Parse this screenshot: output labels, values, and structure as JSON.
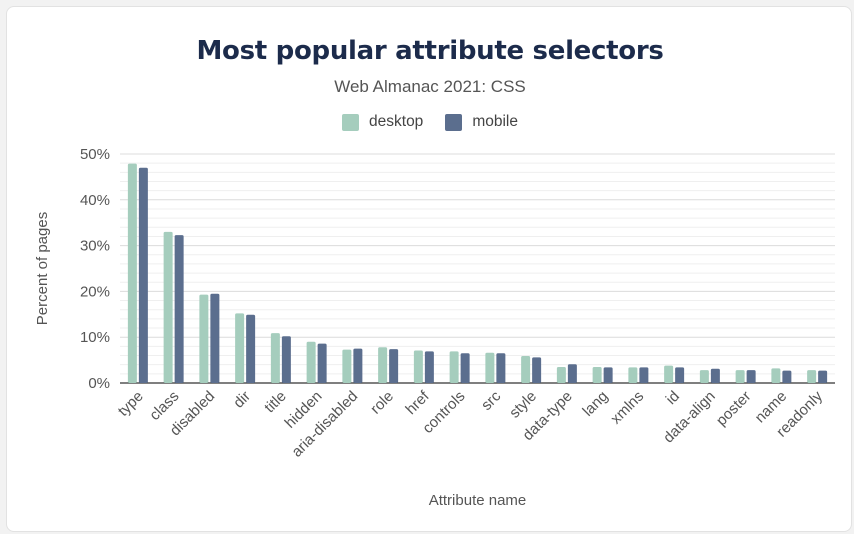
{
  "chart_data": {
    "type": "bar",
    "title": "Most popular attribute selectors",
    "subtitle": "Web Almanac 2021: CSS",
    "xlabel": "Attribute name",
    "ylabel": "Percent of pages",
    "ylim": [
      0,
      50
    ],
    "yticks": [
      "0%",
      "10%",
      "20%",
      "30%",
      "40%",
      "50%"
    ],
    "grid": true,
    "legend_position": "top",
    "categories": [
      "type",
      "class",
      "disabled",
      "dir",
      "title",
      "hidden",
      "aria-disabled",
      "role",
      "href",
      "controls",
      "src",
      "style",
      "data-type",
      "lang",
      "xmlns",
      "id",
      "data-align",
      "poster",
      "name",
      "readonly"
    ],
    "series": [
      {
        "name": "desktop",
        "color": "#a5cdbd",
        "values": [
          47.9,
          33.0,
          19.3,
          15.2,
          10.9,
          9.0,
          7.3,
          7.8,
          7.1,
          6.9,
          6.6,
          5.9,
          3.5,
          3.5,
          3.4,
          3.8,
          2.8,
          2.8,
          3.2,
          2.8
        ]
      },
      {
        "name": "mobile",
        "color": "#5b6e8e",
        "values": [
          47.0,
          32.3,
          19.5,
          14.9,
          10.2,
          8.6,
          7.5,
          7.4,
          6.9,
          6.5,
          6.5,
          5.6,
          4.1,
          3.4,
          3.4,
          3.4,
          3.1,
          2.8,
          2.7,
          2.7
        ]
      }
    ]
  }
}
